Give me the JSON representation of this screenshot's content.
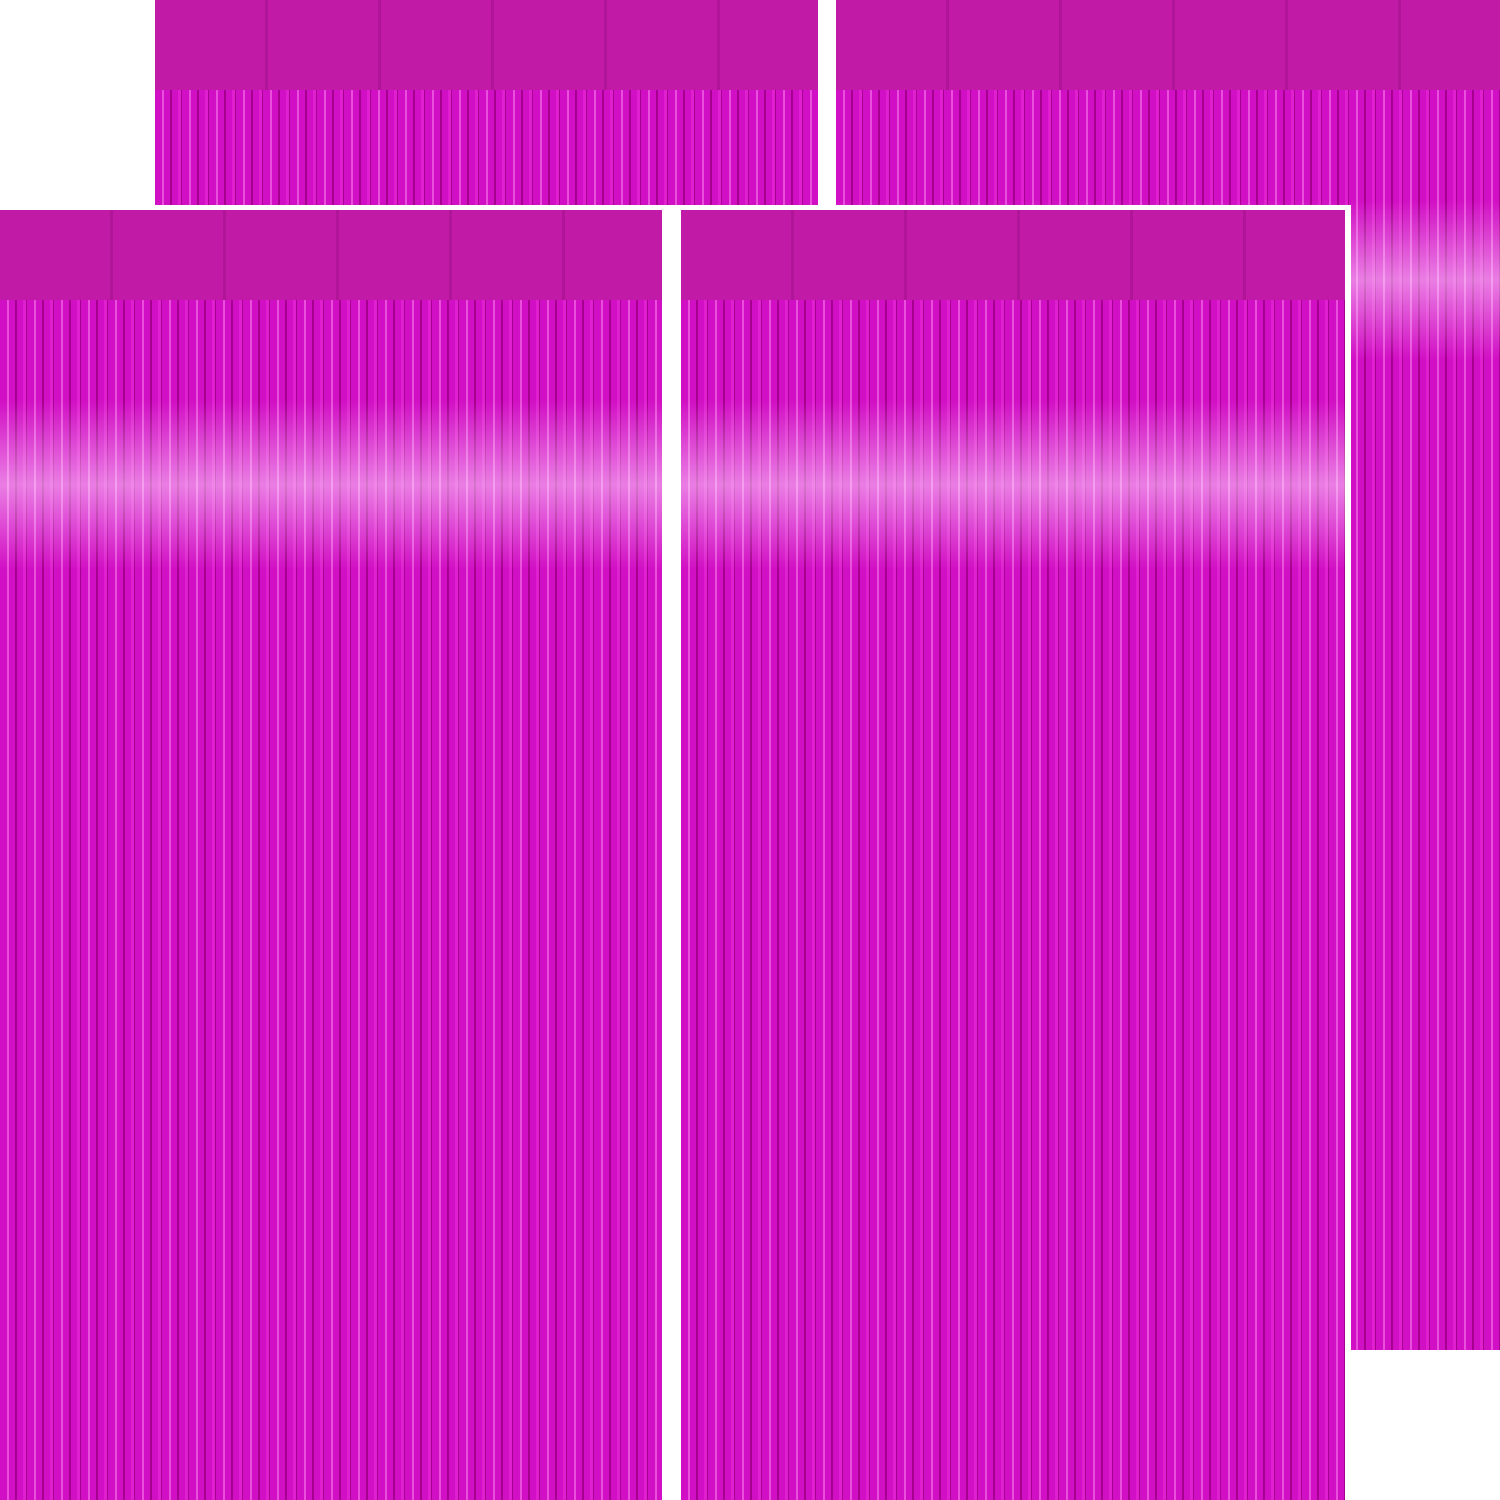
{
  "colors": {
    "header": "#c01aa6",
    "strand_main": "#d10fc4",
    "strand_dark": "#a6008f",
    "strand_light": "#e84fdb",
    "shine": "#ffd6fa",
    "background": "#ffffff"
  },
  "panels": [
    {
      "id": "back-left"
    },
    {
      "id": "back-right"
    },
    {
      "id": "front-left"
    },
    {
      "id": "front-right"
    }
  ]
}
